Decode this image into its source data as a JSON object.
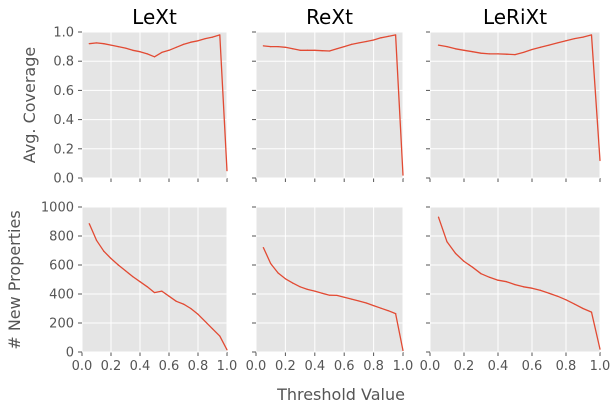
{
  "figure": {
    "xlabel": "Threshold Value",
    "ylabels": [
      "Avg. Coverage",
      "# New Properties"
    ]
  },
  "style": {
    "panel_bg": "#e5e5e5",
    "grid": "#ffffff",
    "line": "#e24a33",
    "tick": "#555555"
  },
  "chart_data": [
    {
      "type": "line",
      "title": "LeXt",
      "xlabel": "",
      "ylabel": "Avg. Coverage",
      "xlim": [
        0,
        1
      ],
      "ylim": [
        0,
        1
      ],
      "xticks": [
        "0.0",
        "0.2",
        "0.4",
        "0.6",
        "0.8",
        "1.0"
      ],
      "yticks": [
        "0.0",
        "0.2",
        "0.4",
        "0.6",
        "0.8",
        "1.0"
      ],
      "x": [
        0.05,
        0.1,
        0.15,
        0.2,
        0.25,
        0.3,
        0.35,
        0.4,
        0.45,
        0.5,
        0.55,
        0.6,
        0.65,
        0.7,
        0.75,
        0.8,
        0.85,
        0.9,
        0.95,
        1.0
      ],
      "y": [
        0.92,
        0.925,
        0.92,
        0.91,
        0.9,
        0.89,
        0.875,
        0.865,
        0.85,
        0.83,
        0.86,
        0.875,
        0.895,
        0.915,
        0.93,
        0.94,
        0.955,
        0.965,
        0.98,
        0.05
      ]
    },
    {
      "type": "line",
      "title": "ReXt",
      "xlabel": "",
      "ylabel": "",
      "xlim": [
        0,
        1
      ],
      "ylim": [
        0,
        1
      ],
      "xticks": [
        "0.0",
        "0.2",
        "0.4",
        "0.6",
        "0.8",
        "1.0"
      ],
      "yticks": [
        "0.0",
        "0.2",
        "0.4",
        "0.6",
        "0.8",
        "1.0"
      ],
      "x": [
        0.05,
        0.1,
        0.15,
        0.2,
        0.25,
        0.3,
        0.35,
        0.4,
        0.45,
        0.5,
        0.55,
        0.6,
        0.65,
        0.7,
        0.75,
        0.8,
        0.85,
        0.9,
        0.95,
        1.0
      ],
      "y": [
        0.905,
        0.9,
        0.9,
        0.895,
        0.885,
        0.875,
        0.875,
        0.875,
        0.872,
        0.87,
        0.885,
        0.9,
        0.915,
        0.925,
        0.935,
        0.945,
        0.96,
        0.97,
        0.98,
        0.02
      ]
    },
    {
      "type": "line",
      "title": "LeRiXt",
      "xlabel": "",
      "ylabel": "",
      "xlim": [
        0,
        1
      ],
      "ylim": [
        0,
        1
      ],
      "xticks": [
        "0.0",
        "0.2",
        "0.4",
        "0.6",
        "0.8",
        "1.0"
      ],
      "yticks": [
        "0.0",
        "0.2",
        "0.4",
        "0.6",
        "0.8",
        "1.0"
      ],
      "x": [
        0.05,
        0.1,
        0.15,
        0.2,
        0.25,
        0.3,
        0.35,
        0.4,
        0.45,
        0.5,
        0.55,
        0.6,
        0.65,
        0.7,
        0.75,
        0.8,
        0.85,
        0.9,
        0.95,
        1.0
      ],
      "y": [
        0.91,
        0.9,
        0.885,
        0.875,
        0.865,
        0.855,
        0.85,
        0.85,
        0.848,
        0.845,
        0.86,
        0.88,
        0.895,
        0.91,
        0.925,
        0.94,
        0.955,
        0.965,
        0.98,
        0.12
      ]
    },
    {
      "type": "line",
      "title": "",
      "xlabel": "Threshold Value",
      "ylabel": "# New Properties",
      "xlim": [
        0,
        1
      ],
      "ylim": [
        0,
        1000
      ],
      "xticks": [
        "0.0",
        "0.2",
        "0.4",
        "0.6",
        "0.8",
        "1.0"
      ],
      "yticks": [
        "0",
        "200",
        "400",
        "600",
        "800",
        "1000"
      ],
      "x": [
        0.05,
        0.1,
        0.15,
        0.2,
        0.25,
        0.3,
        0.35,
        0.4,
        0.45,
        0.5,
        0.55,
        0.6,
        0.65,
        0.7,
        0.75,
        0.8,
        0.85,
        0.9,
        0.95,
        1.0
      ],
      "y": [
        885,
        770,
        695,
        645,
        600,
        560,
        520,
        485,
        450,
        410,
        420,
        385,
        350,
        330,
        300,
        260,
        210,
        160,
        110,
        15
      ]
    },
    {
      "type": "line",
      "title": "",
      "xlabel": "Threshold Value",
      "ylabel": "",
      "xlim": [
        0,
        1
      ],
      "ylim": [
        0,
        1000
      ],
      "xticks": [
        "0.0",
        "0.2",
        "0.4",
        "0.6",
        "0.8",
        "1.0"
      ],
      "yticks": [
        "0",
        "200",
        "400",
        "600",
        "800",
        "1000"
      ],
      "x": [
        0.05,
        0.1,
        0.15,
        0.2,
        0.25,
        0.3,
        0.35,
        0.4,
        0.45,
        0.5,
        0.55,
        0.6,
        0.65,
        0.7,
        0.75,
        0.8,
        0.85,
        0.9,
        0.95,
        1.0
      ],
      "y": [
        720,
        610,
        545,
        505,
        475,
        450,
        432,
        420,
        405,
        392,
        390,
        378,
        365,
        352,
        338,
        320,
        302,
        285,
        265,
        10
      ]
    },
    {
      "type": "line",
      "title": "",
      "xlabel": "Threshold Value",
      "ylabel": "",
      "xlim": [
        0,
        1
      ],
      "ylim": [
        0,
        1000
      ],
      "xticks": [
        "0.0",
        "0.2",
        "0.4",
        "0.6",
        "0.8",
        "1.0"
      ],
      "yticks": [
        "0",
        "200",
        "400",
        "600",
        "800",
        "1000"
      ],
      "x": [
        0.05,
        0.1,
        0.15,
        0.2,
        0.25,
        0.3,
        0.35,
        0.4,
        0.45,
        0.5,
        0.55,
        0.6,
        0.65,
        0.7,
        0.75,
        0.8,
        0.85,
        0.9,
        0.95,
        1.0
      ],
      "y": [
        930,
        760,
        680,
        625,
        585,
        540,
        515,
        495,
        485,
        465,
        450,
        440,
        425,
        405,
        385,
        360,
        330,
        300,
        275,
        20
      ]
    }
  ]
}
